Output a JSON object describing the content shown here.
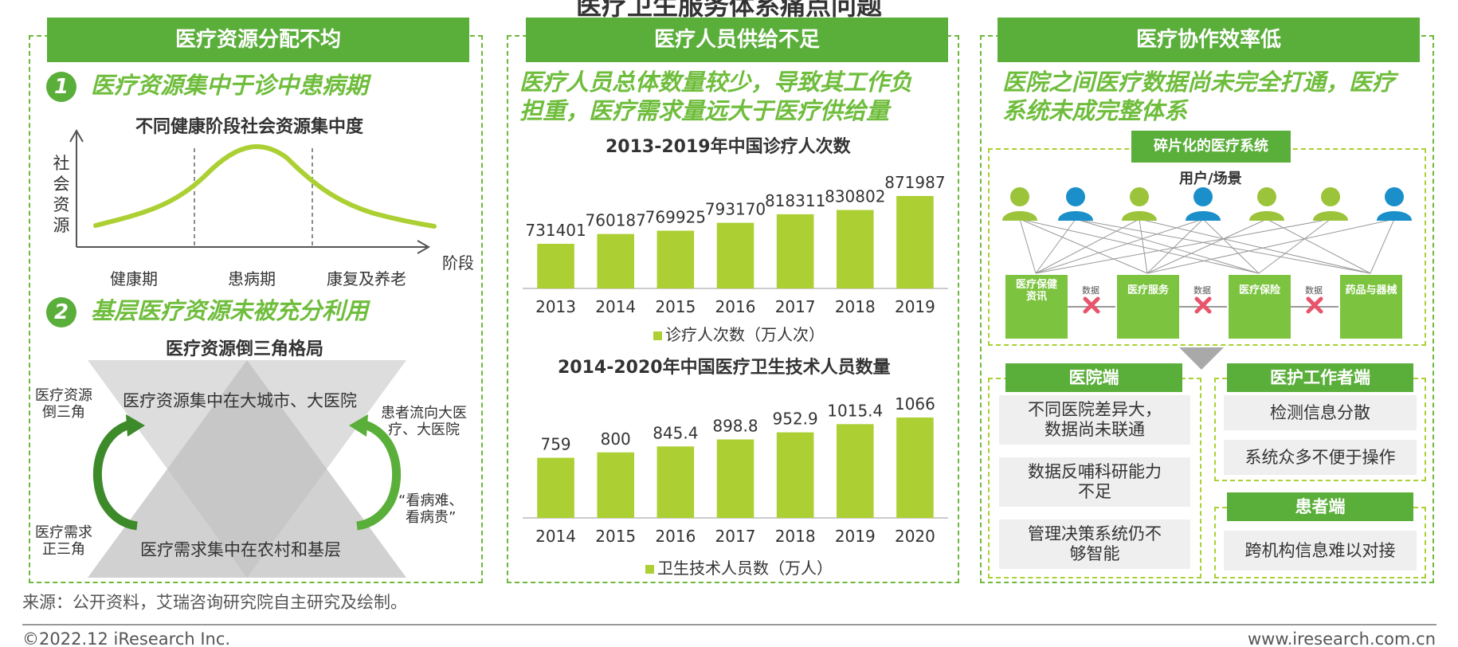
{
  "page_title": "医疗卫生服务体系痛点问题",
  "colors": {
    "green_dark": "#5aae3a",
    "green_bar": "#acd033",
    "green_text": "#6fbd3c"
  },
  "panel1": {
    "header": "医疗资源分配不均",
    "point1": {
      "num": "1",
      "text": "医疗资源集中于诊中患病期"
    },
    "curve_title": "不同健康阶段社会资源集中度",
    "y_axis_label": "社会资源",
    "x_axis_label": "阶段",
    "stages": [
      "健康期",
      "患病期",
      "康复及养老"
    ],
    "point2": {
      "num": "2",
      "text": "基层医疗资源未被充分利用"
    },
    "triangle_title": "医疗资源倒三角格局",
    "inverted_text": "医疗资源集中在大城市、大医院",
    "upright_text": "医疗需求集中在农村和基层",
    "left_top": "医疗资源\n倒三角",
    "left_bottom": "医疗需求\n正三角",
    "right_top": "患者流向大医\n疗、大医院",
    "right_bottom": "“看病难、\n看病贵”"
  },
  "panel2": {
    "header": "医疗人员供给不足",
    "subtitle_line1": "医疗人员总体数量较少，导致其工作负",
    "subtitle_line2": "担重，医疗需求量远大于医疗供给量"
  },
  "chart_data": [
    {
      "type": "bar",
      "title": "2013-2019年中国诊疗人次数",
      "categories": [
        "2013",
        "2014",
        "2015",
        "2016",
        "2017",
        "2018",
        "2019"
      ],
      "series": [
        {
          "name": "诊疗人次数（万人次）",
          "values": [
            731401,
            760187,
            769925,
            793170,
            818311,
            830802,
            871987
          ]
        }
      ],
      "legend": "bottom"
    },
    {
      "type": "bar",
      "title": "2014-2020年中国医疗卫生技术人员数量",
      "categories": [
        "2014",
        "2015",
        "2016",
        "2017",
        "2018",
        "2019",
        "2020"
      ],
      "series": [
        {
          "name": "卫生技术人员数（万人）",
          "values": [
            759,
            800,
            845.4,
            898.8,
            952.9,
            1015.4,
            1066
          ]
        }
      ],
      "legend": "bottom"
    }
  ],
  "panel3": {
    "header": "医疗协作效率低",
    "subtitle_line1": "医院之间医疗数据尚未完全打通，医疗",
    "subtitle_line2": "系统未成完整体系",
    "fragment_title": "碎片化的医疗系统",
    "users_label": "用户/场景",
    "nodes": [
      "医疗保健\n资讯",
      "医疗服务",
      "医疗保险",
      "药品与器械"
    ],
    "data_label": "数据",
    "hospital": {
      "title": "医院端",
      "items": [
        "不同医院差异大，\n数据尚未联通",
        "数据反哺科研能力\n不足",
        "管理决策系统仍不\n够智能"
      ]
    },
    "worker": {
      "title": "医护工作者端",
      "items": [
        "检测信息分散",
        "系统众多不便于操作"
      ]
    },
    "patient": {
      "title": "患者端",
      "items": [
        "跨机构信息难以对接"
      ]
    }
  },
  "footer": {
    "source": "来源：公开资料，艾瑞咨询研究院自主研究及绘制。",
    "copyright": "©2022.12 iResearch Inc.",
    "website": "www.iresearch.com.cn"
  }
}
